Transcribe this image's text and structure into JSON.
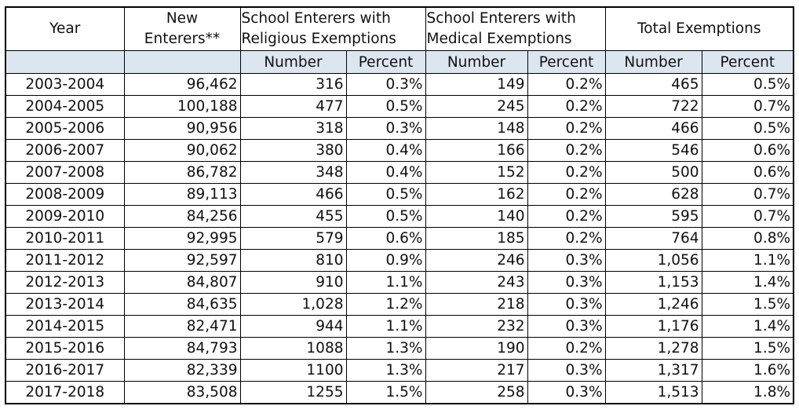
{
  "table": {
    "header": [
      "Year",
      "New Enterers**",
      "School Enterers with Religious Exemptions",
      "School Enterers with Medical Exemptions",
      "Total Exemptions"
    ],
    "subheader": [
      "Number",
      "Percent",
      "Number",
      "Percent",
      "Number",
      "Percent"
    ],
    "rows": [
      [
        "2003-2004",
        "96,462",
        "316",
        "0.3%",
        "149",
        "0.2%",
        "465",
        "0.5%"
      ],
      [
        "2004-2005",
        "100,188",
        "477",
        "0.5%",
        "245",
        "0.2%",
        "722",
        "0.7%"
      ],
      [
        "2005-2006",
        "90,956",
        "318",
        "0.3%",
        "148",
        "0.2%",
        "466",
        "0.5%"
      ],
      [
        "2006-2007",
        "90,062",
        "380",
        "0.4%",
        "166",
        "0.2%",
        "546",
        "0.6%"
      ],
      [
        "2007-2008",
        "86,782",
        "348",
        "0.4%",
        "152",
        "0.2%",
        "500",
        "0.6%"
      ],
      [
        "2008-2009",
        "89,113",
        "466",
        "0.5%",
        "162",
        "0.2%",
        "628",
        "0.7%"
      ],
      [
        "2009-2010",
        "84,256",
        "455",
        "0.5%",
        "140",
        "0.2%",
        "595",
        "0.7%"
      ],
      [
        "2010-2011",
        "92,995",
        "579",
        "0.6%",
        "185",
        "0.2%",
        "764",
        "0.8%"
      ],
      [
        "2011-2012",
        "92,597",
        "810",
        "0.9%",
        "246",
        "0.3%",
        "1,056",
        "1.1%"
      ],
      [
        "2012-2013",
        "84,807",
        "910",
        "1.1%",
        "243",
        "0.3%",
        "1,153",
        "1.4%"
      ],
      [
        "2013-2014",
        "84,635",
        "1,028",
        "1.2%",
        "218",
        "0.3%",
        "1,246",
        "1.5%"
      ],
      [
        "2014-2015",
        "82,471",
        "944",
        "1.1%",
        "232",
        "0.3%",
        "1,176",
        "1.4%"
      ],
      [
        "2015-2016",
        "84,793",
        "1088",
        "1.3%",
        "190",
        "0.2%",
        "1,278",
        "1.5%"
      ],
      [
        "2016-2017",
        "82,339",
        "1100",
        "1.3%",
        "217",
        "0.3%",
        "1,317",
        "1.6%"
      ],
      [
        "2017-2018",
        "83,508",
        "1255",
        "1.5%",
        "258",
        "0.3%",
        "1,513",
        "1.8%"
      ]
    ]
  }
}
